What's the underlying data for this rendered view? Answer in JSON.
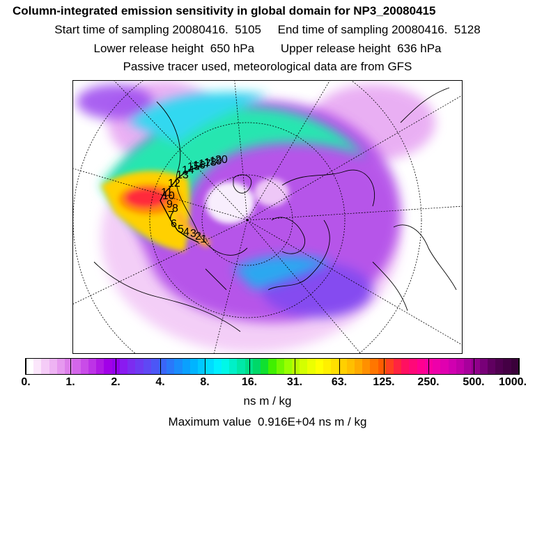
{
  "header": {
    "title": "Column-integrated emission sensitivity in global domain for NP3_20080415",
    "line2": "Start time of sampling 20080416.  5105     End time of sampling 20080416.  5128",
    "line3": "Lower release height  650 hPa        Upper release height  636 hPa",
    "line4": "Passive tracer used, meteorological data are from GFS"
  },
  "map": {
    "projection": "polar-stereographic",
    "track_labels": [
      "1",
      "2",
      "3",
      "4",
      "5",
      "6",
      "7",
      "8",
      "9",
      "10",
      "11",
      "12",
      "13",
      "14",
      "15",
      "16",
      "17",
      "18",
      "19",
      "20"
    ],
    "colors": {
      "low": "#e07ff0",
      "mid": "#7a2cf0",
      "green": "#2ee8a0",
      "high": "#ff2a3a",
      "orange": "#ffb020"
    }
  },
  "colorbar": {
    "unit": "ns m / kg",
    "tick_labels": [
      "0.",
      "1.",
      "2.",
      "4.",
      "8.",
      "16.",
      "31.",
      "63.",
      "125.",
      "250.",
      "500.",
      "1000."
    ],
    "colors": [
      "#ffffff",
      "#fbe6fb",
      "#f5ccf7",
      "#eeb3f3",
      "#e699ef",
      "#dd7fea",
      "#d466ea",
      "#c94ce8",
      "#bd33e6",
      "#b019e4",
      "#a200e8",
      "#9300ec",
      "#8a1af0",
      "#7c2cf0",
      "#6e3af2",
      "#5f48f4",
      "#4c56f6",
      "#3a66f8",
      "#2a78fa",
      "#1a8cfc",
      "#0aa0fe",
      "#00b4ff",
      "#00c8ff",
      "#00dcff",
      "#00f0ff",
      "#00f8e8",
      "#00f0c8",
      "#00e8a8",
      "#00e088",
      "#00d868",
      "#10e030",
      "#40f000",
      "#70f800",
      "#98ff00",
      "#b8ff00",
      "#d4ff00",
      "#ecff00",
      "#ffff00",
      "#fff000",
      "#ffe000",
      "#ffd000",
      "#ffbf00",
      "#ffaa00",
      "#ff9000",
      "#ff7600",
      "#ff5c00",
      "#ff4020",
      "#ff2440",
      "#ff1060",
      "#ff0878",
      "#ff0090",
      "#f800a0",
      "#ee00aa",
      "#e000b0",
      "#d000b0",
      "#c000a8",
      "#a8009c",
      "#90008a",
      "#780078",
      "#600060",
      "#500050",
      "#440044",
      "#3a003a"
    ]
  },
  "maximum": {
    "text": "Maximum value  0.916E+04 ns m / kg"
  }
}
